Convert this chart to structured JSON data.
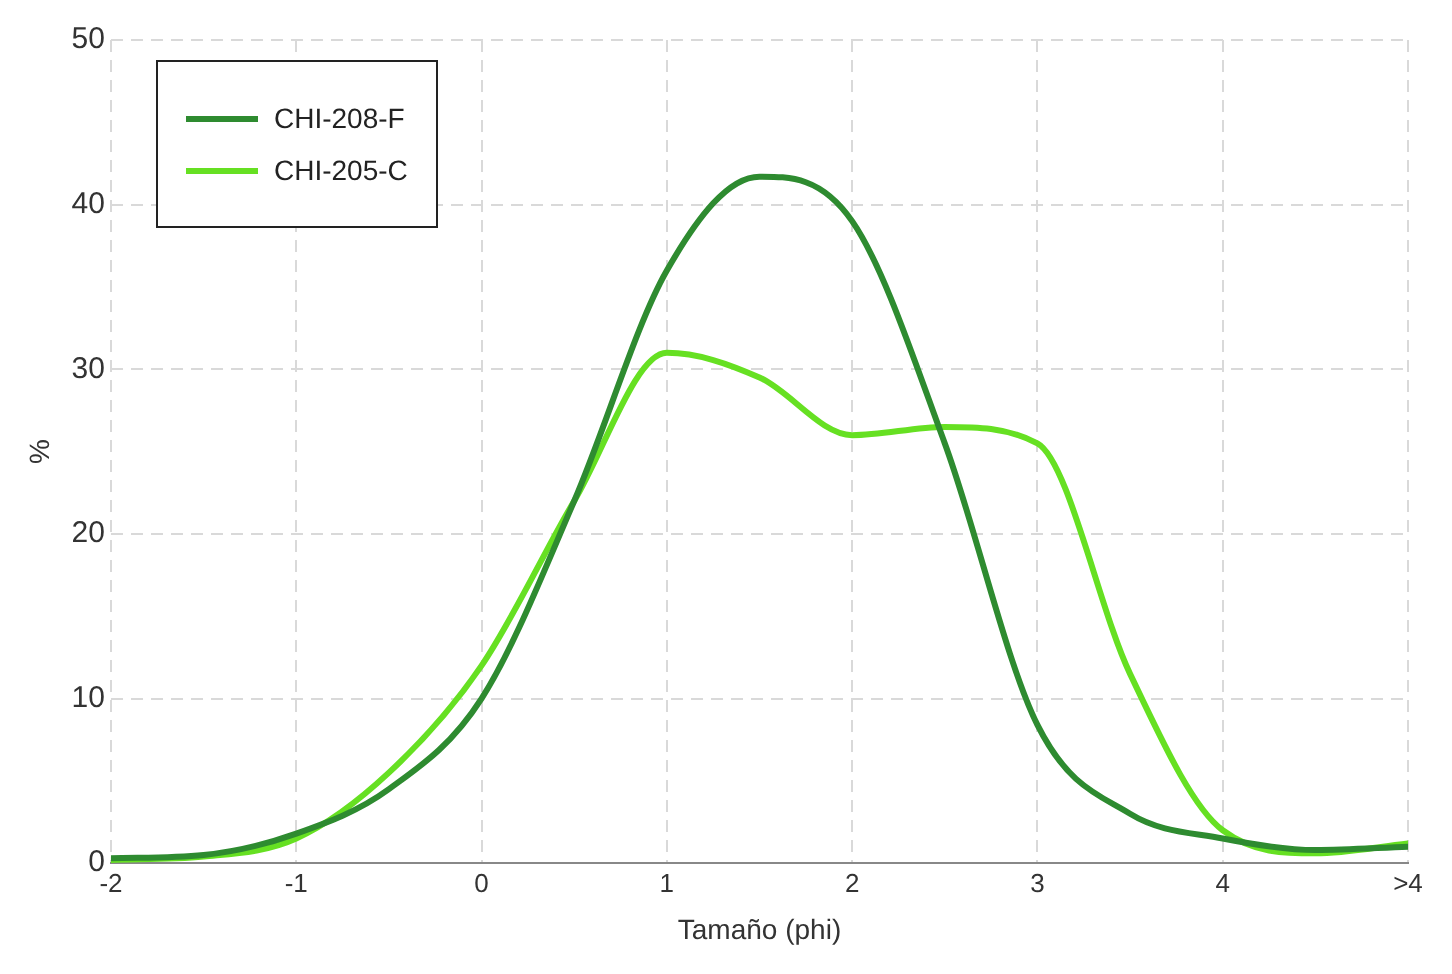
{
  "chart_data": {
    "type": "line",
    "xlabel": "Tamaño (phi)",
    "ylabel": "%",
    "x": [
      -2,
      -1.5,
      -1,
      -0.5,
      0,
      0.5,
      1,
      1.5,
      2,
      2.5,
      3,
      3.5,
      4,
      4.5,
      5
    ],
    "series": [
      {
        "name": "CHI-208-F",
        "color": "#2e8b30",
        "values": [
          0.3,
          0.5,
          1.8,
          4.5,
          10,
          22,
          36,
          41.7,
          39,
          25.5,
          8.4,
          3,
          1.5,
          0.8,
          1
        ]
      },
      {
        "name": "CHI-205-C",
        "color": "#66e022",
        "values": [
          0.2,
          0.4,
          1.5,
          5.5,
          12,
          22,
          31,
          29.5,
          26,
          26.5,
          25.5,
          11.5,
          2,
          0.6,
          1.2
        ]
      }
    ],
    "xlim": [
      -2,
      5
    ],
    "xticks": [
      -2,
      -1,
      0,
      1,
      2,
      3,
      4,
      {
        "value": 5,
        "label": ">4"
      }
    ],
    "ylim": [
      0,
      50
    ],
    "yticks": [
      0,
      10,
      20,
      30,
      40,
      50
    ],
    "grid": true,
    "legend": "top left",
    "marker": "none",
    "line_style": "solid"
  }
}
